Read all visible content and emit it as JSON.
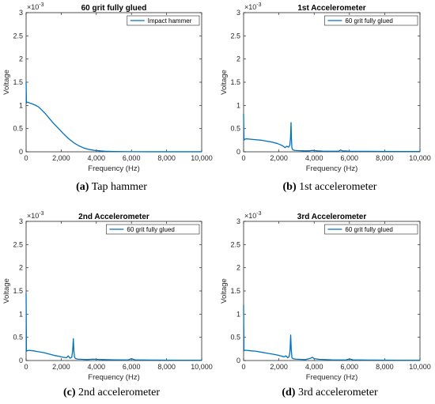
{
  "colors": {
    "series": "#0072BD",
    "axis": "#262626",
    "background": "#ffffff"
  },
  "chart_data": [
    {
      "type": "line",
      "title": "60 grit fully glued",
      "caption_label": "(a)",
      "caption_text": " Tap hammer",
      "xlabel": "Frequency (Hz)",
      "ylabel": "Voltage",
      "xlim": [
        0,
        10000
      ],
      "ylim": [
        0,
        3
      ],
      "y_exponent": "×10",
      "y_exponent_power": "-3",
      "x_ticks": [
        0,
        2000,
        4000,
        6000,
        8000,
        10000
      ],
      "x_tick_labels": [
        "0",
        "2,000",
        "4,000",
        "6,000",
        "8,000",
        "10,000"
      ],
      "y_ticks": [
        0,
        0.5,
        1,
        1.5,
        2,
        2.5,
        3
      ],
      "y_tick_labels": [
        "0",
        "0.5",
        "1",
        "1.5",
        "2",
        "2.5",
        "3"
      ],
      "legend": "top-right",
      "series": [
        {
          "name": "Impact hammer",
          "x": [
            0,
            20,
            60,
            150,
            300,
            500,
            700,
            900,
            1100,
            1300,
            1500,
            1800,
            2100,
            2400,
            2700,
            3000,
            3300,
            3600,
            3900,
            4200,
            4500,
            4800,
            5100,
            5500,
            6000,
            7000,
            8000,
            9000,
            10000
          ],
          "y": [
            1.5,
            1.05,
            1.07,
            1.06,
            1.04,
            1.01,
            0.97,
            0.9,
            0.82,
            0.73,
            0.64,
            0.52,
            0.4,
            0.29,
            0.2,
            0.13,
            0.08,
            0.05,
            0.03,
            0.02,
            0.012,
            0.008,
            0.005,
            0.003,
            0.002,
            0.001,
            0.001,
            0.001,
            0.001
          ]
        }
      ]
    },
    {
      "type": "line",
      "title": "1st Accelerometer",
      "caption_label": "(b)",
      "caption_text": " 1st accelerometer",
      "xlabel": "Frequency (Hz)",
      "ylabel": "Voltage",
      "xlim": [
        0,
        10000
      ],
      "ylim": [
        0,
        3
      ],
      "y_exponent": "×10",
      "y_exponent_power": "-3",
      "x_ticks": [
        0,
        2000,
        4000,
        6000,
        8000,
        10000
      ],
      "x_tick_labels": [
        "0",
        "2,000",
        "4,000",
        "6,000",
        "8,000",
        "10,000"
      ],
      "y_ticks": [
        0,
        0.5,
        1,
        1.5,
        2,
        2.5,
        3
      ],
      "y_tick_labels": [
        "0",
        "0.5",
        "1",
        "1.5",
        "2",
        "2.5",
        "3"
      ],
      "legend": "top-right",
      "series": [
        {
          "name": "60 grit fully glued",
          "x": [
            0,
            20,
            60,
            150,
            400,
            700,
            1000,
            1300,
            1600,
            1900,
            2100,
            2250,
            2350,
            2450,
            2550,
            2620,
            2660,
            2690,
            2710,
            2740,
            2800,
            2900,
            3100,
            3400,
            3700,
            3900,
            4200,
            4500,
            5000,
            5400,
            5500,
            5600,
            6000,
            7000,
            8000,
            9000,
            10000
          ],
          "y": [
            0.82,
            0.25,
            0.27,
            0.28,
            0.27,
            0.26,
            0.25,
            0.23,
            0.21,
            0.18,
            0.15,
            0.12,
            0.09,
            0.12,
            0.1,
            0.14,
            0.3,
            0.63,
            0.3,
            0.08,
            0.04,
            0.03,
            0.025,
            0.02,
            0.02,
            0.03,
            0.02,
            0.015,
            0.012,
            0.015,
            0.04,
            0.02,
            0.012,
            0.01,
            0.008,
            0.006,
            0.005
          ]
        }
      ]
    },
    {
      "type": "line",
      "title": "2nd Accelerometer",
      "caption_label": "(c)",
      "caption_text": " 2nd accelerometer",
      "xlabel": "Frequency (Hz)",
      "ylabel": "Voltage",
      "xlim": [
        0,
        10000
      ],
      "ylim": [
        0,
        3
      ],
      "y_exponent": "×10",
      "y_exponent_power": "-3",
      "x_ticks": [
        0,
        2000,
        4000,
        6000,
        8000,
        10000
      ],
      "x_tick_labels": [
        "0",
        "2,000",
        "4,000",
        "6,000",
        "8,000",
        "10,000"
      ],
      "y_ticks": [
        0,
        0.5,
        1,
        1.5,
        2,
        2.5,
        3
      ],
      "y_tick_labels": [
        "0",
        "0.5",
        "1",
        "1.5",
        "2",
        "2.5",
        "3"
      ],
      "legend": "top-right",
      "series": [
        {
          "name": "60 grit fully glued",
          "x": [
            0,
            20,
            60,
            150,
            400,
            700,
            1000,
            1300,
            1600,
            1900,
            2100,
            2300,
            2400,
            2500,
            2600,
            2650,
            2690,
            2720,
            2760,
            2820,
            2950,
            3200,
            3500,
            3800,
            4000,
            4400,
            5000,
            5800,
            6000,
            6200,
            7000,
            8000,
            9000,
            10000
          ],
          "y": [
            1.45,
            0.2,
            0.21,
            0.22,
            0.21,
            0.19,
            0.17,
            0.14,
            0.11,
            0.09,
            0.07,
            0.06,
            0.1,
            0.05,
            0.07,
            0.2,
            0.47,
            0.22,
            0.07,
            0.04,
            0.03,
            0.025,
            0.02,
            0.03,
            0.025,
            0.02,
            0.015,
            0.012,
            0.04,
            0.015,
            0.01,
            0.008,
            0.006,
            0.005
          ]
        }
      ]
    },
    {
      "type": "line",
      "title": "3rd Accelerometer",
      "caption_label": "(d)",
      "caption_text": " 3rd accelerometer",
      "xlabel": "Frequency (Hz)",
      "ylabel": "Voltage",
      "xlim": [
        0,
        10000
      ],
      "ylim": [
        0,
        3
      ],
      "y_exponent": "×10",
      "y_exponent_power": "-3",
      "x_ticks": [
        0,
        2000,
        4000,
        6000,
        8000,
        10000
      ],
      "x_tick_labels": [
        "0",
        "2,000",
        "4,000",
        "6,000",
        "8,000",
        "10,000"
      ],
      "y_ticks": [
        0,
        0.5,
        1,
        1.5,
        2,
        2.5,
        3
      ],
      "y_tick_labels": [
        "0",
        "0.5",
        "1",
        "1.5",
        "2",
        "2.5",
        "3"
      ],
      "legend": "top-right",
      "series": [
        {
          "name": "60 grit fully glued",
          "x": [
            0,
            20,
            60,
            150,
            400,
            700,
            1000,
            1300,
            1600,
            1900,
            2100,
            2300,
            2400,
            2500,
            2580,
            2630,
            2670,
            2700,
            2740,
            2800,
            2950,
            3200,
            3500,
            3800,
            3900,
            4000,
            4300,
            5000,
            5800,
            6000,
            6200,
            7000,
            8000,
            9000,
            10000
          ],
          "y": [
            1.2,
            0.21,
            0.22,
            0.22,
            0.21,
            0.2,
            0.18,
            0.16,
            0.14,
            0.12,
            0.1,
            0.08,
            0.1,
            0.06,
            0.08,
            0.2,
            0.55,
            0.25,
            0.06,
            0.04,
            0.03,
            0.025,
            0.02,
            0.05,
            0.07,
            0.04,
            0.025,
            0.015,
            0.012,
            0.035,
            0.015,
            0.01,
            0.008,
            0.006,
            0.005
          ]
        }
      ]
    }
  ]
}
